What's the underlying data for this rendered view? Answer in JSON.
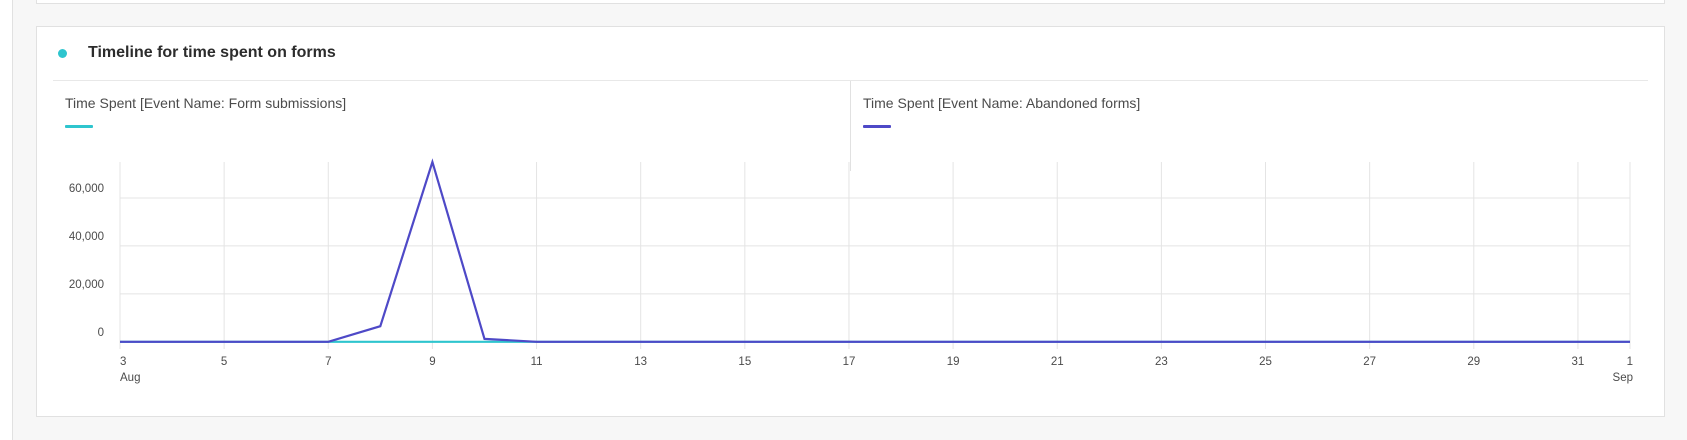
{
  "card": {
    "title": "Timeline for time spent on forms",
    "dot_color": "#2ec5ce"
  },
  "legend": [
    {
      "label": "Time Spent [Event Name: Form submissions]",
      "color": "#2ec5ce"
    },
    {
      "label": "Time Spent [Event Name: Abandoned forms]",
      "color": "#4e49c7"
    }
  ],
  "chart_data": {
    "type": "line",
    "title": "Timeline for time spent on forms",
    "x_start": "Aug 3",
    "x_end": "Sep 1",
    "x": [
      "Aug 3",
      "Aug 4",
      "Aug 5",
      "Aug 6",
      "Aug 7",
      "Aug 8",
      "Aug 9",
      "Aug 10",
      "Aug 11",
      "Aug 12",
      "Aug 13",
      "Aug 14",
      "Aug 15",
      "Aug 16",
      "Aug 17",
      "Aug 18",
      "Aug 19",
      "Aug 20",
      "Aug 21",
      "Aug 22",
      "Aug 23",
      "Aug 24",
      "Aug 25",
      "Aug 26",
      "Aug 27",
      "Aug 28",
      "Aug 29",
      "Aug 30",
      "Aug 31",
      "Sep 1"
    ],
    "x_ticks": [
      {
        "index": 0,
        "label": "3",
        "sublabel": "Aug"
      },
      {
        "index": 2,
        "label": "5"
      },
      {
        "index": 4,
        "label": "7"
      },
      {
        "index": 6,
        "label": "9"
      },
      {
        "index": 8,
        "label": "11"
      },
      {
        "index": 10,
        "label": "13"
      },
      {
        "index": 12,
        "label": "15"
      },
      {
        "index": 14,
        "label": "17"
      },
      {
        "index": 16,
        "label": "19"
      },
      {
        "index": 18,
        "label": "21"
      },
      {
        "index": 20,
        "label": "23"
      },
      {
        "index": 22,
        "label": "25"
      },
      {
        "index": 24,
        "label": "27"
      },
      {
        "index": 26,
        "label": "29"
      },
      {
        "index": 28,
        "label": "31"
      },
      {
        "index": 29,
        "label": "1",
        "sublabel": "Sep"
      }
    ],
    "y_ticks": [
      {
        "value": 0,
        "label": "0"
      },
      {
        "value": 20000,
        "label": "20,000"
      },
      {
        "value": 40000,
        "label": "40,000"
      },
      {
        "value": 60000,
        "label": "60,000"
      }
    ],
    "ylim": [
      -3000,
      75000
    ],
    "grid": true,
    "series": [
      {
        "name": "Time Spent [Event Name: Form submissions]",
        "color": "#2ec5ce",
        "values": [
          0,
          0,
          0,
          0,
          0,
          0,
          0,
          0,
          0,
          0,
          0,
          0,
          0,
          0,
          0,
          0,
          0,
          0,
          0,
          0,
          0,
          0,
          0,
          0,
          0,
          0,
          0,
          0,
          0,
          0
        ]
      },
      {
        "name": "Time Spent [Event Name: Abandoned forms]",
        "color": "#4e49c7",
        "values": [
          0,
          0,
          0,
          0,
          0,
          6500,
          75000,
          1200,
          0,
          0,
          0,
          0,
          0,
          0,
          0,
          0,
          0,
          0,
          0,
          0,
          0,
          0,
          0,
          0,
          0,
          0,
          0,
          0,
          0,
          0
        ]
      }
    ]
  }
}
